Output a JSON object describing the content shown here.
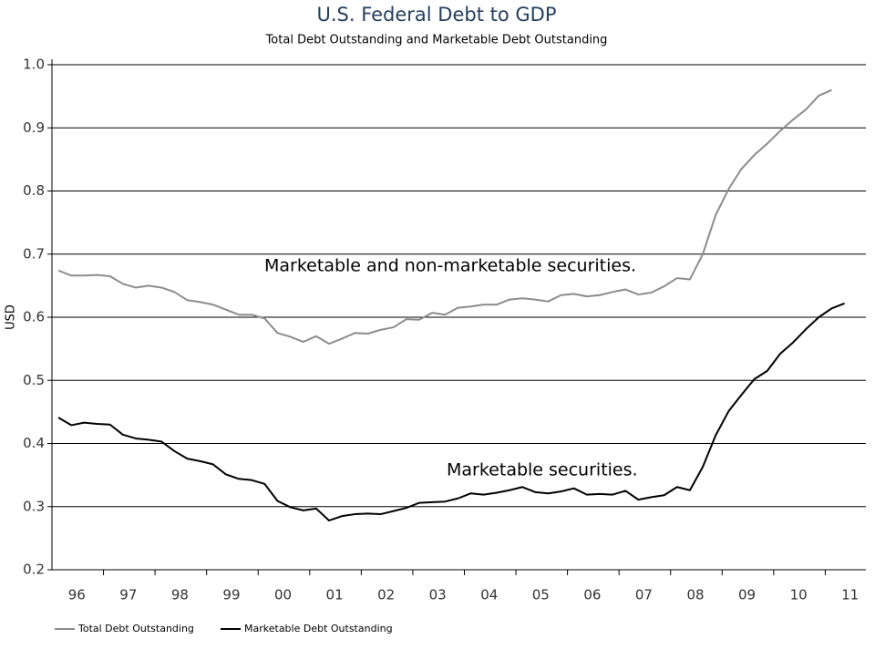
{
  "chart_data": {
    "type": "line",
    "title": "U.S. Federal Debt to GDP",
    "subtitle": "Total Debt Outstanding and Marketable Debt Outstanding",
    "y_label": "USD",
    "categories": [
      "96",
      null,
      null,
      null,
      "97",
      null,
      null,
      null,
      "98",
      null,
      null,
      null,
      "99",
      null,
      null,
      null,
      "00",
      null,
      null,
      null,
      "01",
      null,
      null,
      null,
      "02",
      null,
      null,
      null,
      "03",
      null,
      null,
      null,
      "04",
      null,
      null,
      null,
      "05",
      null,
      null,
      null,
      "06",
      null,
      null,
      null,
      "07",
      null,
      null,
      null,
      "08",
      null,
      null,
      null,
      "09",
      null,
      null,
      null,
      "10",
      null,
      null,
      null,
      "11",
      null
    ],
    "series": [
      {
        "name": "Total Debt Outstanding",
        "color": "#8c8c8c",
        "values": [
          0.674,
          0.666,
          0.666,
          0.667,
          0.665,
          0.653,
          0.647,
          0.65,
          0.647,
          0.64,
          0.627,
          0.624,
          0.62,
          0.612,
          0.604,
          0.604,
          0.598,
          0.575,
          0.569,
          0.561,
          0.57,
          0.558,
          0.566,
          0.575,
          0.574,
          0.58,
          0.584,
          0.597,
          0.596,
          0.607,
          0.604,
          0.615,
          0.617,
          0.62,
          0.62,
          0.628,
          0.63,
          0.628,
          0.625,
          0.635,
          0.637,
          0.633,
          0.635,
          0.64,
          0.644,
          0.636,
          0.639,
          0.649,
          0.662,
          0.66,
          0.7,
          0.762,
          0.803,
          0.835,
          0.857,
          0.875,
          0.895,
          0.913,
          0.929,
          0.951,
          0.96,
          null
        ]
      },
      {
        "name": "Marketable Debt Outstanding",
        "color": "#000000",
        "values": [
          0.441,
          0.429,
          0.433,
          0.431,
          0.43,
          0.414,
          0.408,
          0.406,
          0.403,
          0.388,
          0.376,
          0.372,
          0.367,
          0.351,
          0.344,
          0.342,
          0.336,
          0.309,
          0.299,
          0.294,
          0.297,
          0.278,
          0.285,
          0.288,
          0.289,
          0.288,
          0.293,
          0.298,
          0.306,
          0.307,
          0.308,
          0.313,
          0.321,
          0.319,
          0.322,
          0.326,
          0.331,
          0.323,
          0.321,
          0.324,
          0.329,
          0.319,
          0.32,
          0.319,
          0.325,
          0.311,
          0.315,
          0.318,
          0.331,
          0.326,
          0.363,
          0.413,
          0.451,
          0.477,
          0.502,
          0.515,
          0.542,
          0.56,
          0.581,
          0.6,
          0.614,
          0.622
        ]
      }
    ],
    "annotations": [
      "Marketable and non-marketable securities.",
      "Marketable securities."
    ],
    "ylim": [
      0.2,
      1.0
    ],
    "yticks": [
      0.2,
      0.3,
      0.4,
      0.5,
      0.6,
      0.7,
      0.8,
      0.9,
      {
        "value": 1,
        "label": "1.0"
      }
    ],
    "grid": true,
    "legend": "bottom-left"
  }
}
